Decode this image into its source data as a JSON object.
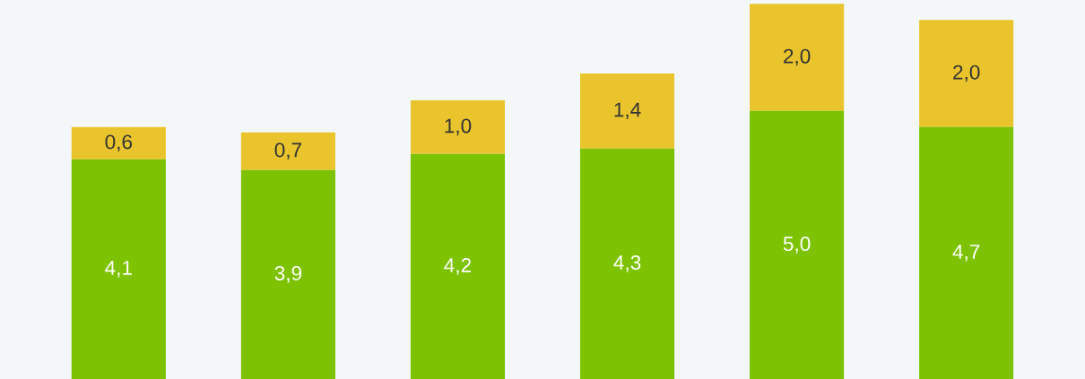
{
  "chart_data": {
    "type": "bar",
    "stacked": true,
    "tick_labels": false,
    "categories": [
      null,
      null,
      null,
      null,
      null,
      null
    ],
    "series": [
      {
        "color": "#7dc304",
        "values": [
          4.1,
          3.9,
          4.2,
          4.3,
          5.0,
          4.7
        ],
        "value_labels": [
          "4,1",
          "3,9",
          "4,2",
          "4,3",
          "5,0",
          "4,7"
        ]
      },
      {
        "color": "#eac42c",
        "values": [
          0.6,
          0.7,
          1.0,
          1.4,
          2.0,
          2.0
        ],
        "value_labels": [
          "0,6",
          "0,7",
          "1,0",
          "1,4",
          "2,0",
          "2,0"
        ]
      }
    ]
  }
}
